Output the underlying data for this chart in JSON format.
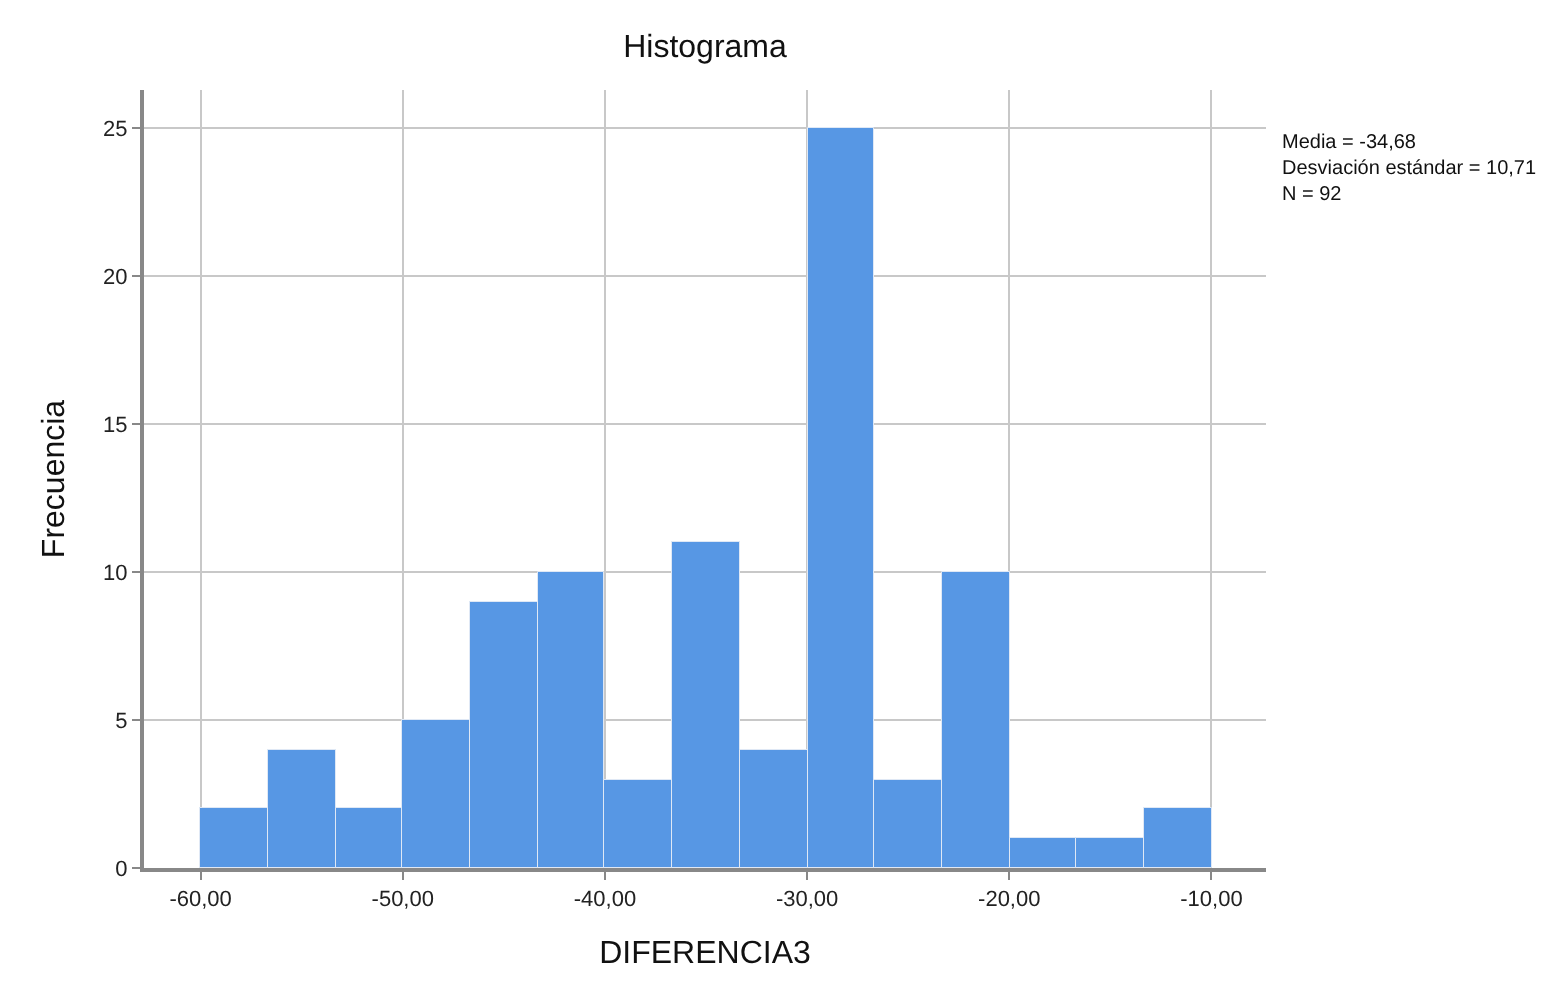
{
  "chart_data": {
    "type": "histogram",
    "title": "Histograma",
    "xlabel": "DIFERENCIA3",
    "ylabel": "Frecuencia",
    "bins": [
      -60,
      -56.7,
      -53.3,
      -50,
      -46.7,
      -43.3,
      -40,
      -36.7,
      -33.3,
      -30,
      -26.7,
      -23.3,
      -20,
      -16.7,
      -13.3,
      -10
    ],
    "values": [
      2,
      4,
      2,
      5,
      9,
      10,
      3,
      11,
      4,
      25,
      3,
      10,
      1,
      1,
      2
    ],
    "color": "#5797e4",
    "xlim": [
      -62.8,
      -7.3
    ],
    "xticks": [
      {
        "value": -60,
        "label": "-60,00"
      },
      {
        "value": -50,
        "label": "-50,00"
      },
      {
        "value": -40,
        "label": "-40,00"
      },
      {
        "value": -30,
        "label": "-30,00"
      },
      {
        "value": -20,
        "label": "-20,00"
      },
      {
        "value": -10,
        "label": "-10,00"
      }
    ],
    "ylim": [
      0,
      26.3
    ],
    "yticks": [
      0,
      5,
      10,
      15,
      20,
      25
    ],
    "grid": true,
    "annotations": [
      "Media = -34,68\nDesviación estándar = 10,71\nN = 92"
    ]
  }
}
